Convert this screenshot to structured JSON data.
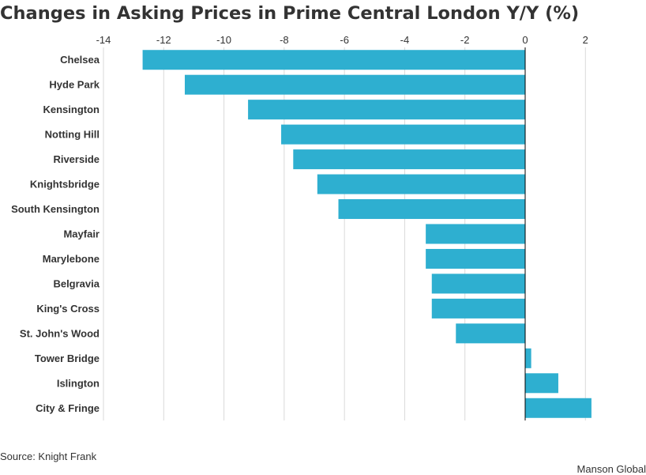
{
  "title": "Changes in Asking Prices in Prime Central London Y/Y (%)",
  "source": "Source: Knight Frank",
  "brand": "Manson Global",
  "colors": {
    "bar": "#2eafd0",
    "grid": "#d9d9d9",
    "zero_line": "#000000",
    "text": "#333333"
  },
  "chart_data": {
    "type": "bar",
    "orientation": "horizontal",
    "categories": [
      "Chelsea",
      "Hyde Park",
      "Kensington",
      "Notting Hill",
      "Riverside",
      "Knightsbridge",
      "South Kensington",
      "Mayfair",
      "Marylebone",
      "Belgravia",
      "King's Cross",
      "St. John's Wood",
      "Tower Bridge",
      "Islington",
      "City & Fringe"
    ],
    "values": [
      -12.7,
      -11.3,
      -9.2,
      -8.1,
      -7.7,
      -6.9,
      -6.2,
      -3.3,
      -3.3,
      -3.1,
      -3.1,
      -2.3,
      0.2,
      1.1,
      2.2
    ],
    "xlim": [
      -14,
      3
    ],
    "xticks": [
      -14,
      -12,
      -10,
      -8,
      -6,
      -4,
      -2,
      0,
      2
    ],
    "tick_labels": [
      "-14",
      "-12",
      "-10",
      "-8",
      "-6",
      "-4",
      "-2",
      "0",
      "2"
    ],
    "grid": true,
    "xaxis_position": "top"
  }
}
